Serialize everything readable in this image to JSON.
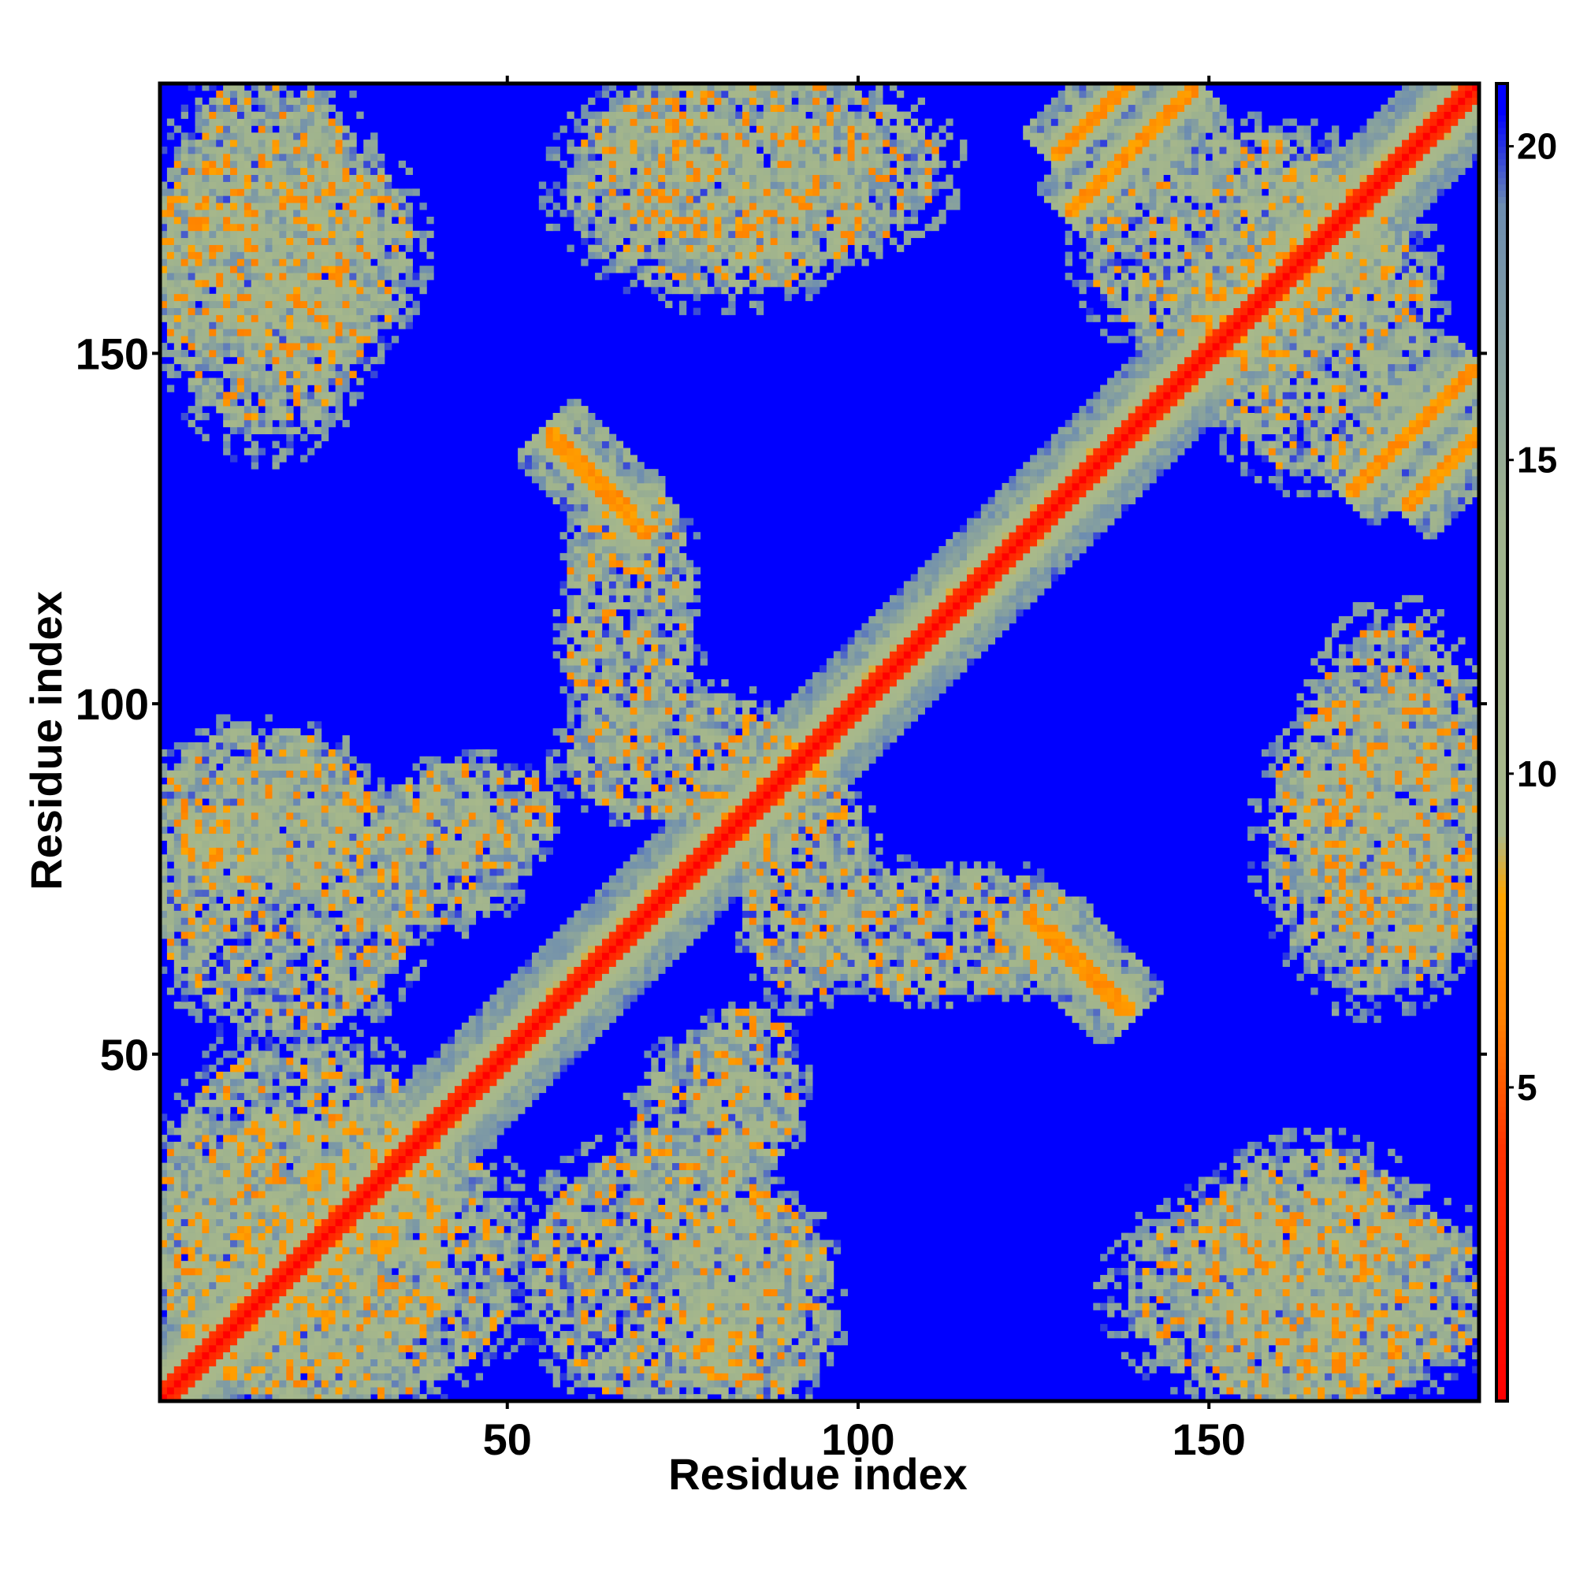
{
  "chart_data": {
    "type": "heatmap",
    "title": "",
    "xlabel": "Residue index",
    "ylabel": "Residue index",
    "x_range": [
      1,
      188
    ],
    "y_range": [
      1,
      188
    ],
    "x_ticks": [
      50,
      100,
      150
    ],
    "y_ticks": [
      50,
      100,
      150
    ],
    "x_tick_labels": [
      "50",
      "100",
      "150"
    ],
    "y_tick_labels": [
      "50",
      "100",
      "150"
    ],
    "colorbar": {
      "range": [
        0,
        21
      ],
      "ticks": [
        5,
        10,
        15,
        20
      ],
      "tick_labels": [
        "5",
        "10",
        "15",
        "20"
      ],
      "colors": [
        {
          "value": 0,
          "color": "#ff0000"
        },
        {
          "value": 4,
          "color": "#ff3300"
        },
        {
          "value": 6,
          "color": "#ff8000"
        },
        {
          "value": 8,
          "color": "#ffa500"
        },
        {
          "value": 9,
          "color": "#a9b98a"
        },
        {
          "value": 14,
          "color": "#9fb38e"
        },
        {
          "value": 19,
          "color": "#6d8db0"
        },
        {
          "value": 20.5,
          "color": "#0000ff"
        }
      ]
    },
    "background_value": 21,
    "matrix_description_values": {
      "diagonal": 0,
      "near_diagonal_band": 6,
      "contact_mid": 12,
      "far": 21
    },
    "features": {
      "diagonal_band_halfwidth_residues": 3,
      "beta_sheet_antidiagonals": [
        {
          "from": [
            56,
            138
          ],
          "to": [
            70,
            124
          ]
        },
        {
          "from": [
            127,
            68
          ],
          "to": [
            139,
            56
          ]
        },
        {
          "from": [
            128,
            178
          ],
          "to": [
            140,
            190
          ]
        },
        {
          "from": [
            170,
            130
          ],
          "to": [
            188,
            148
          ]
        }
      ],
      "contact_clusters": [
        {
          "x": [
            2,
            30
          ],
          "y": [
            140,
            188
          ]
        },
        {
          "x": [
            2,
            28
          ],
          "y": [
            75,
            95
          ]
        },
        {
          "x": [
            2,
            40
          ],
          "y": [
            2,
            50
          ]
        },
        {
          "x": [
            35,
            55
          ],
          "y": [
            78,
            90
          ]
        },
        {
          "x": [
            55,
            90
          ],
          "y": [
            2,
            35
          ]
        },
        {
          "x": [
            70,
            85
          ],
          "y": [
            30,
            50
          ]
        },
        {
          "x": [
            60,
            90
          ],
          "y": [
            85,
            100
          ]
        },
        {
          "x": [
            150,
            180
          ],
          "y": [
            2,
            35
          ]
        },
        {
          "x": [
            160,
            188
          ],
          "y": [
            60,
            100
          ]
        },
        {
          "x": [
            135,
            175
          ],
          "y": [
            150,
            180
          ]
        },
        {
          "x": [
            65,
            110
          ],
          "y": [
            165,
            188
          ]
        },
        {
          "x": [
            95,
            130
          ],
          "y": [
            60,
            75
          ]
        }
      ]
    }
  }
}
